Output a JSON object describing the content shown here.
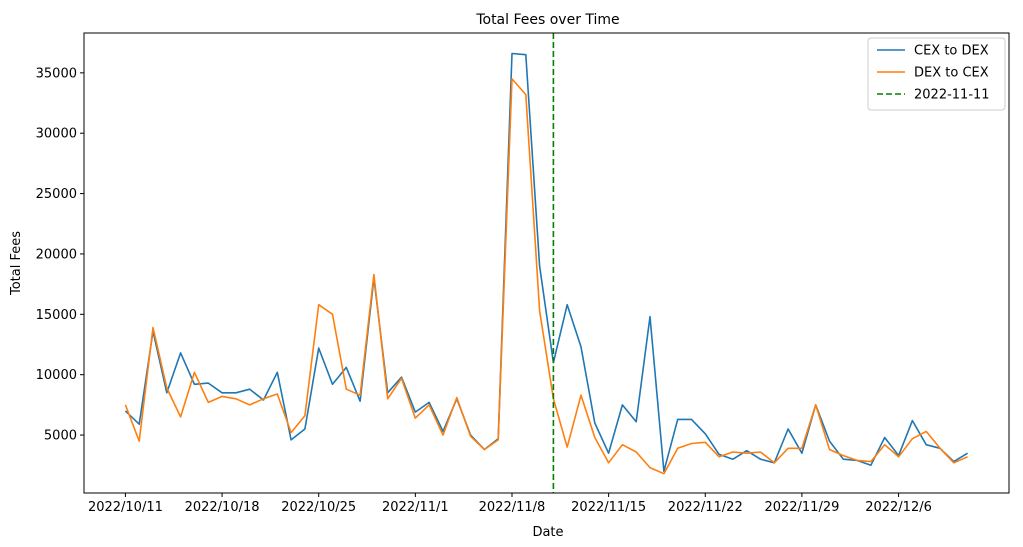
{
  "chart_data": {
    "type": "line",
    "title": "Total Fees over Time",
    "xlabel": "Date",
    "ylabel": "Total Fees",
    "x_tick_labels": [
      "2022/10/11",
      "2022/10/18",
      "2022/10/25",
      "2022/11/1",
      "2022/11/8",
      "2022/11/15",
      "2022/11/22",
      "2022/11/29",
      "2022/12/6"
    ],
    "x_range": [
      "2022-10-08",
      "2022-12-14"
    ],
    "ylim": [
      200,
      38300
    ],
    "y_ticks": [
      5000,
      10000,
      15000,
      20000,
      25000,
      30000,
      35000
    ],
    "grid": false,
    "legend_position": "top-right",
    "dates": [
      "2022-10-11",
      "2022-10-12",
      "2022-10-13",
      "2022-10-14",
      "2022-10-15",
      "2022-10-16",
      "2022-10-17",
      "2022-10-18",
      "2022-10-19",
      "2022-10-20",
      "2022-10-21",
      "2022-10-22",
      "2022-10-23",
      "2022-10-24",
      "2022-10-25",
      "2022-10-26",
      "2022-10-27",
      "2022-10-28",
      "2022-10-29",
      "2022-10-30",
      "2022-10-31",
      "2022-11-01",
      "2022-11-02",
      "2022-11-03",
      "2022-11-04",
      "2022-11-05",
      "2022-11-06",
      "2022-11-07",
      "2022-11-08",
      "2022-11-09",
      "2022-11-10",
      "2022-11-11",
      "2022-11-12",
      "2022-11-13",
      "2022-11-14",
      "2022-11-15",
      "2022-11-16",
      "2022-11-17",
      "2022-11-18",
      "2022-11-19",
      "2022-11-20",
      "2022-11-21",
      "2022-11-22",
      "2022-11-23",
      "2022-11-24",
      "2022-11-25",
      "2022-11-26",
      "2022-11-27",
      "2022-11-28",
      "2022-11-29",
      "2022-11-30",
      "2022-12-01",
      "2022-12-02",
      "2022-12-03",
      "2022-12-04",
      "2022-12-05",
      "2022-12-06",
      "2022-12-07",
      "2022-12-08",
      "2022-12-09",
      "2022-12-10",
      "2022-12-11"
    ],
    "series": [
      {
        "name": "CEX to DEX",
        "color": "#1f77b4",
        "values": [
          7000,
          5900,
          13600,
          8500,
          11800,
          9200,
          9300,
          8500,
          8500,
          8800,
          7900,
          10200,
          4600,
          5500,
          12200,
          9200,
          10600,
          7800,
          18000,
          8500,
          9800,
          6900,
          7700,
          5300,
          8000,
          5000,
          3800,
          4700,
          36600,
          36500,
          19000,
          11000,
          15800,
          12300,
          6000,
          3500,
          7500,
          6100,
          14800,
          2000,
          6300,
          6300,
          5100,
          3400,
          3000,
          3700,
          3000,
          2700,
          5500,
          3500,
          7500,
          4500,
          3000,
          2900,
          2500,
          4800,
          3300,
          6200,
          4200,
          3900,
          2800,
          3500
        ]
      },
      {
        "name": "DEX to CEX",
        "color": "#ff7f0e",
        "values": [
          7500,
          4500,
          13900,
          8900,
          6500,
          10200,
          7700,
          8200,
          8000,
          7500,
          8000,
          8400,
          5200,
          6600,
          15800,
          15000,
          8800,
          8300,
          18300,
          8000,
          9700,
          6400,
          7500,
          5000,
          8100,
          4900,
          3800,
          4600,
          34500,
          33200,
          15300,
          8000,
          4000,
          8300,
          4800,
          2700,
          4200,
          3600,
          2300,
          1800,
          3900,
          4300,
          4400,
          3200,
          3600,
          3500,
          3600,
          2700,
          3900,
          3900,
          7500,
          3800,
          3300,
          2900,
          2800,
          4200,
          3200,
          4700,
          5300,
          3900,
          2700,
          3200
        ]
      }
    ],
    "annotations": [
      {
        "type": "vline",
        "date": "2022-11-11",
        "label": "2022-11-11",
        "color": "#008000",
        "style": "dashed"
      }
    ]
  }
}
